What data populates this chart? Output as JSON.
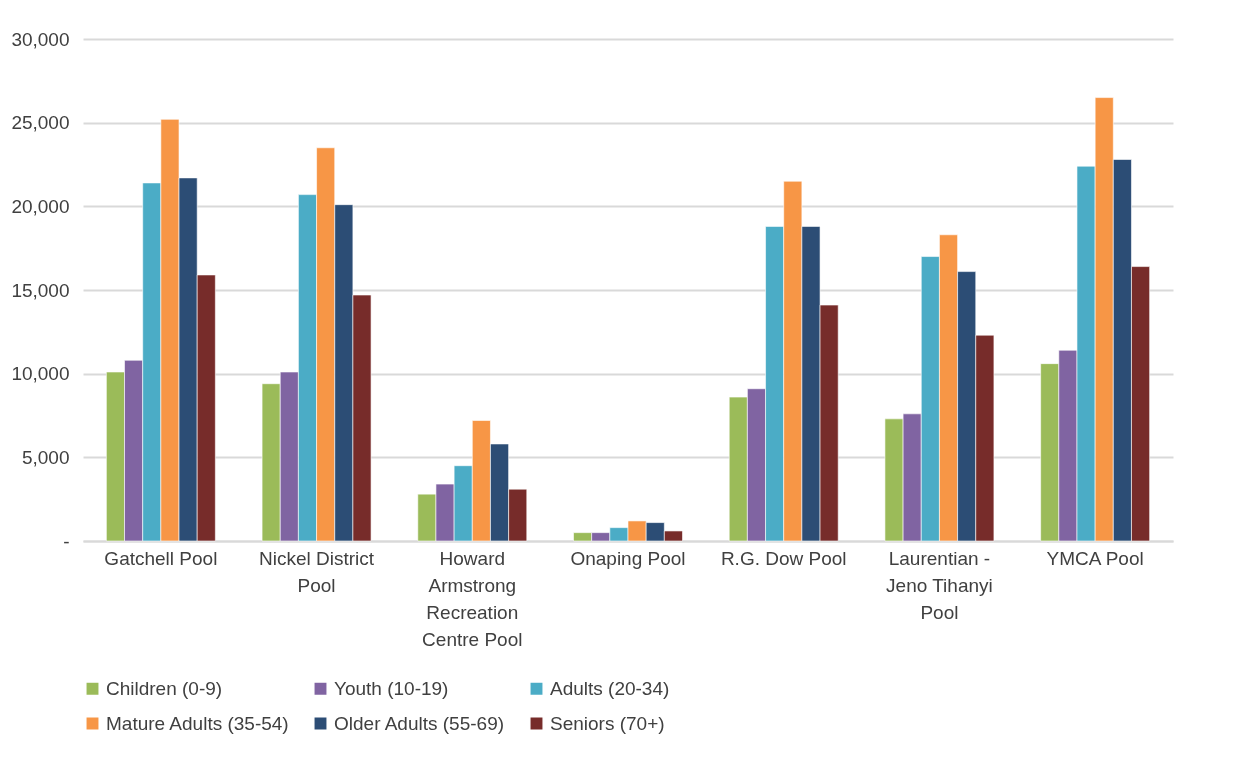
{
  "chart_data": {
    "type": "bar",
    "categories": [
      "Gatchell Pool",
      "Nickel District Pool",
      "Howard Armstrong Recreation Centre Pool",
      "Onaping Pool",
      "R.G. Dow Pool",
      "Laurentian - Jeno Tihanyi Pool",
      "YMCA Pool"
    ],
    "series": [
      {
        "name": "Children (0-9)",
        "color": "#9bbb59",
        "values": [
          10100,
          9400,
          2800,
          500,
          8600,
          7300,
          10600
        ]
      },
      {
        "name": "Youth (10-19)",
        "color": "#8064a2",
        "values": [
          10800,
          10100,
          3400,
          500,
          9100,
          7600,
          11400
        ]
      },
      {
        "name": "Adults (20-34)",
        "color": "#4bacc6",
        "values": [
          21400,
          20700,
          4500,
          800,
          18800,
          17000,
          22400
        ]
      },
      {
        "name": "Mature Adults (35-54)",
        "color": "#f79646",
        "values": [
          25200,
          23500,
          7200,
          1200,
          21500,
          18300,
          26500
        ]
      },
      {
        "name": "Older Adults (55-69)",
        "color": "#2c4d75",
        "values": [
          21700,
          20100,
          5800,
          1100,
          18800,
          16100,
          22800
        ]
      },
      {
        "name": "Seniors (70+)",
        "color": "#772c2a",
        "values": [
          15900,
          14700,
          3100,
          600,
          14100,
          12300,
          16400
        ]
      }
    ],
    "ylim": [
      0,
      30000
    ],
    "yticks": [
      {
        "value": 0,
        "label": "-"
      },
      {
        "value": 5000,
        "label": "5,000"
      },
      {
        "value": 10000,
        "label": "10,000"
      },
      {
        "value": 15000,
        "label": "15,000"
      },
      {
        "value": 20000,
        "label": "20,000"
      },
      {
        "value": 25000,
        "label": "25,000"
      },
      {
        "value": 30000,
        "label": "30,000"
      }
    ],
    "grid": "y",
    "legend": "bottom"
  }
}
